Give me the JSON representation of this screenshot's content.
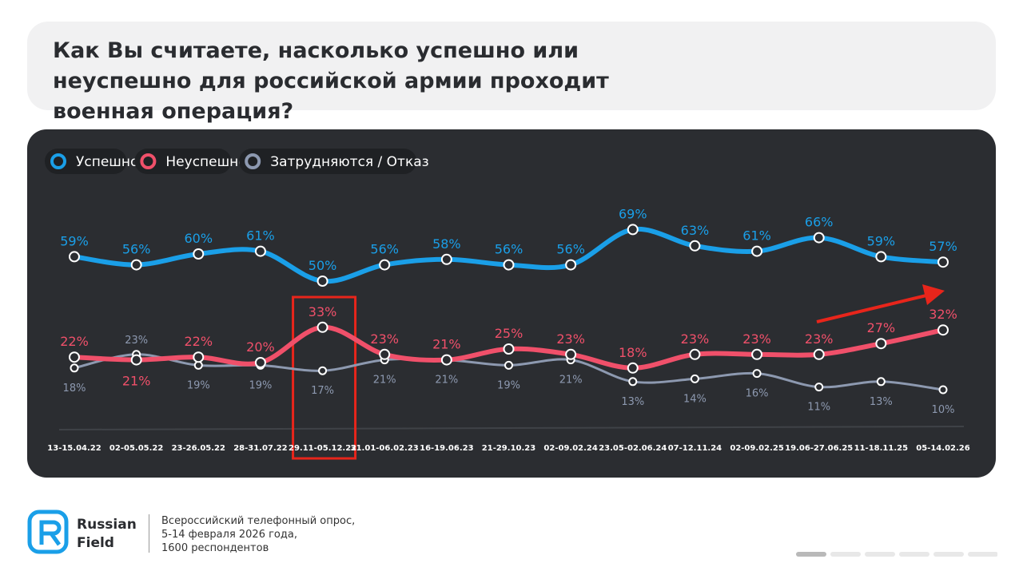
{
  "title": "Как Вы считаете, насколько успешно или неуспешно для российской армии проходит военная операция?",
  "chart_data": {
    "type": "line",
    "categories": [
      "13-15.04.22",
      "02-05.05.22",
      "23-26.05.22",
      "28-31.07.22",
      "29.11-05.12.22",
      "31.01-06.02.23",
      "16-19.06.23",
      "21-29.10.23",
      "02-09.02.24",
      "23.05-02.06.24",
      "07-12.11.24",
      "02-09.02.25",
      "19.06-27.06.25",
      "11-18.11.25",
      "05-14.02.26"
    ],
    "series": [
      {
        "name": "Успешно",
        "color": "#1a9fe8",
        "values": [
          59,
          56,
          60,
          61,
          50,
          56,
          58,
          56,
          56,
          69,
          63,
          61,
          66,
          59,
          57
        ],
        "value_labels": [
          "59%",
          "56%",
          "60%",
          "61%",
          "50%",
          "56%",
          "58%",
          "56%",
          "56%",
          "69%",
          "63%",
          "61%",
          "66%",
          "59%",
          "57%"
        ]
      },
      {
        "name": "Неуспешно",
        "color": "#f0506a",
        "values": [
          22,
          21,
          22,
          20,
          33,
          23,
          21,
          25,
          23,
          18,
          23,
          23,
          23,
          27,
          32
        ],
        "value_labels": [
          "22%",
          "21%",
          "22%",
          "20%",
          "33%",
          "23%",
          "21%",
          "25%",
          "23%",
          "18%",
          "23%",
          "23%",
          "23%",
          "27%",
          "32%"
        ]
      },
      {
        "name": "Затрудняются / Отказ",
        "color": "#8d99b0",
        "values": [
          18,
          23,
          19,
          19,
          17,
          21,
          21,
          19,
          21,
          13,
          14,
          16,
          11,
          13,
          10
        ],
        "value_labels": [
          "18%",
          "23%",
          "19%",
          "19%",
          "17%",
          "21%",
          "21%",
          "19%",
          "21%",
          "13%",
          "14%",
          "16%",
          "11%",
          "13%",
          "10%"
        ]
      }
    ]
  },
  "footer": {
    "brand": [
      "Russian",
      "Field"
    ],
    "note": [
      "Всероссийский телефонный опрос,",
      "5-14 февраля 2026 года,",
      "1600 респондентов"
    ]
  }
}
